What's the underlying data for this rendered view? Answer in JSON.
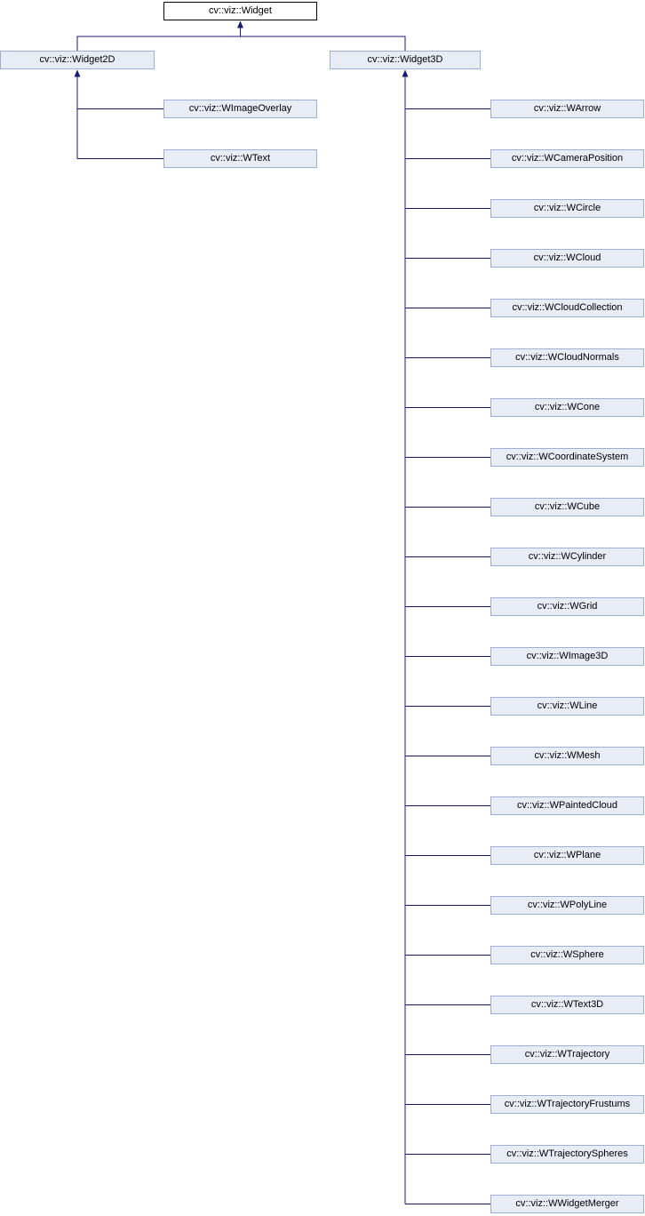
{
  "colors": {
    "edge": "#191970",
    "node_border": "#9CAFD4",
    "node_fill": "#E8ECF5",
    "root_border": "#000000",
    "root_fill": "#FFFFFF",
    "text": "#000000"
  },
  "hierarchy": {
    "root": "cv::viz::Widget",
    "branches": [
      {
        "parent": "cv::viz::Widget2D",
        "children": [
          "cv::viz::WImageOverlay",
          "cv::viz::WText"
        ]
      },
      {
        "parent": "cv::viz::Widget3D",
        "children": [
          "cv::viz::WArrow",
          "cv::viz::WCameraPosition",
          "cv::viz::WCircle",
          "cv::viz::WCloud",
          "cv::viz::WCloudCollection",
          "cv::viz::WCloudNormals",
          "cv::viz::WCone",
          "cv::viz::WCoordinateSystem",
          "cv::viz::WCube",
          "cv::viz::WCylinder",
          "cv::viz::WGrid",
          "cv::viz::WImage3D",
          "cv::viz::WLine",
          "cv::viz::WMesh",
          "cv::viz::WPaintedCloud",
          "cv::viz::WPlane",
          "cv::viz::WPolyLine",
          "cv::viz::WSphere",
          "cv::viz::WText3D",
          "cv::viz::WTrajectory",
          "cv::viz::WTrajectoryFrustums",
          "cv::viz::WTrajectorySpheres",
          "cv::viz::WWidgetMerger"
        ]
      }
    ]
  }
}
